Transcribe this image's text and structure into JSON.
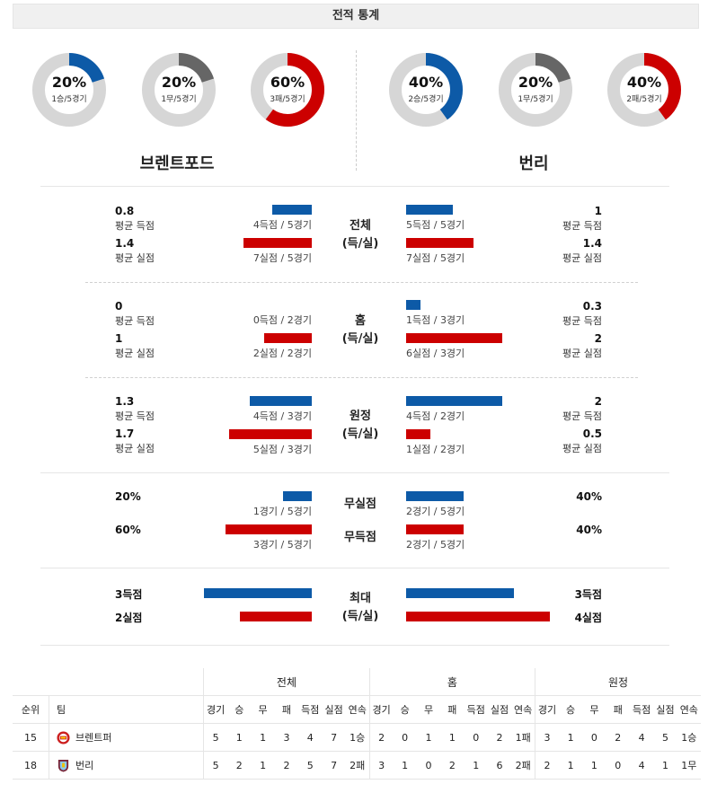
{
  "header": {
    "title": "전적 통계"
  },
  "teams": {
    "home": {
      "name": "브렌트포드",
      "donuts": [
        {
          "pct": "20%",
          "sub": "1승/5경기",
          "value": 0.2,
          "color": "#0d5aa7"
        },
        {
          "pct": "20%",
          "sub": "1무/5경기",
          "value": 0.2,
          "color": "#666666"
        },
        {
          "pct": "60%",
          "sub": "3패/5경기",
          "value": 0.6,
          "color": "#cc0000"
        }
      ]
    },
    "away": {
      "name": "번리",
      "donuts": [
        {
          "pct": "40%",
          "sub": "2승/5경기",
          "value": 0.4,
          "color": "#0d5aa7"
        },
        {
          "pct": "20%",
          "sub": "1무/5경기",
          "value": 0.2,
          "color": "#666666"
        },
        {
          "pct": "40%",
          "sub": "2패/5경기",
          "value": 0.4,
          "color": "#cc0000"
        }
      ]
    }
  },
  "labels": {
    "avg_scored": "평균 득점",
    "avg_conceded": "평균 실점"
  },
  "sections": {
    "overall": {
      "center1": "전체",
      "center2": "(득/실)",
      "home_scored": "0.8",
      "home_scored_sub": "4득점 / 5경기",
      "home_conceded": "1.4",
      "home_conceded_sub": "7실점 / 5경기",
      "away_scored": "1",
      "away_scored_sub": "5득점 / 5경기",
      "away_conceded": "1.4",
      "away_conceded_sub": "7실점 / 5경기"
    },
    "home": {
      "center1": "홈",
      "center2": "(득/실)",
      "home_scored": "0",
      "home_scored_sub": "0득점 / 2경기",
      "home_conceded": "1",
      "home_conceded_sub": "2실점 / 2경기",
      "away_scored": "0.3",
      "away_scored_sub": "1득점 / 3경기",
      "away_conceded": "2",
      "away_conceded_sub": "6실점 / 3경기"
    },
    "away": {
      "center1": "원정",
      "center2": "(득/실)",
      "home_scored": "1.3",
      "home_scored_sub": "4득점 / 3경기",
      "home_conceded": "1.7",
      "home_conceded_sub": "5실점 / 3경기",
      "away_scored": "2",
      "away_scored_sub": "4득점 / 2경기",
      "away_conceded": "0.5",
      "away_conceded_sub": "1실점 / 2경기"
    },
    "clean": {
      "center_a": "무실점",
      "center_b": "무득점",
      "home_a": "20%",
      "home_a_sub": "1경기 / 5경기",
      "home_b": "60%",
      "home_b_sub": "3경기 / 5경기",
      "away_a": "40%",
      "away_a_sub": "2경기 / 5경기",
      "away_b": "40%",
      "away_b_sub": "2경기 / 5경기"
    },
    "max": {
      "center1": "최대",
      "center2": "(득/실)",
      "home_scored": "3득점",
      "home_conceded": "2실점",
      "away_scored": "3득점",
      "away_conceded": "4실점"
    }
  },
  "standings": {
    "groups": [
      "전체",
      "홈",
      "원정"
    ],
    "col_rank": "순위",
    "col_team": "팀",
    "cols": [
      "경기",
      "승",
      "무",
      "패",
      "득점",
      "실점",
      "연속"
    ],
    "rows": [
      {
        "rank": "15",
        "team": "브렌트퍼",
        "overall": [
          "5",
          "1",
          "1",
          "3",
          "4",
          "7",
          "1승"
        ],
        "home": [
          "2",
          "0",
          "1",
          "1",
          "0",
          "2",
          "1패"
        ],
        "away": [
          "3",
          "1",
          "0",
          "2",
          "4",
          "5",
          "1승"
        ]
      },
      {
        "rank": "18",
        "team": "번리",
        "overall": [
          "5",
          "2",
          "1",
          "2",
          "5",
          "7",
          "2패"
        ],
        "home": [
          "3",
          "1",
          "0",
          "2",
          "1",
          "6",
          "2패"
        ],
        "away": [
          "2",
          "1",
          "1",
          "0",
          "4",
          "1",
          "1무"
        ]
      }
    ]
  }
}
